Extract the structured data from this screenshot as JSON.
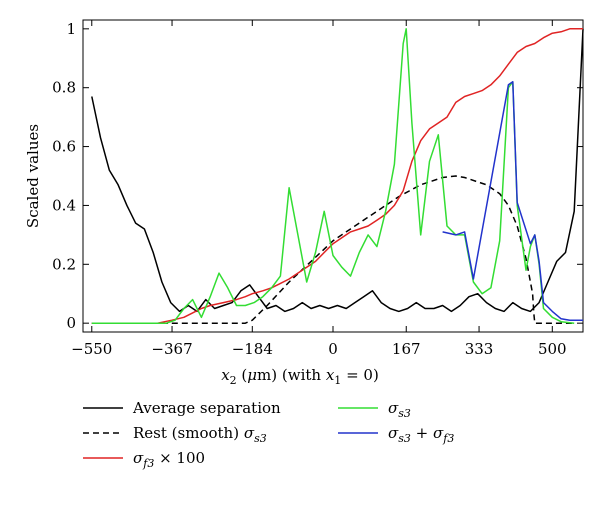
{
  "chart_data": {
    "type": "line",
    "xlabel_parts": [
      "x",
      "2",
      " (",
      "μ",
      "m) (with ",
      "x",
      "1",
      " = 0)"
    ],
    "ylabel": "Scaled values",
    "xlim": [
      -570,
      570
    ],
    "ylim": [
      -0.03,
      1.03
    ],
    "x_ticks": [
      -550,
      -367,
      -184,
      0,
      167,
      333,
      500
    ],
    "x_tick_labels": [
      "−550",
      "−367",
      "−184",
      "0",
      "167",
      "333",
      "500"
    ],
    "y_ticks": [
      0,
      0.2,
      0.4,
      0.6,
      0.8,
      1
    ],
    "y_tick_labels": [
      "0",
      "0.2",
      "0.4",
      "0.6",
      "0.8",
      "1"
    ],
    "grid": false,
    "legend_position": "bottom",
    "series": [
      {
        "key": "avg_sep",
        "legend": "Average separation",
        "color": "#000000",
        "dash": "",
        "x": [
          -550,
          -530,
          -510,
          -490,
          -470,
          -450,
          -430,
          -410,
          -390,
          -370,
          -350,
          -330,
          -310,
          -290,
          -270,
          -250,
          -230,
          -210,
          -190,
          -170,
          -150,
          -130,
          -110,
          -90,
          -70,
          -50,
          -30,
          -10,
          10,
          30,
          50,
          70,
          90,
          110,
          130,
          150,
          170,
          190,
          210,
          230,
          250,
          270,
          290,
          310,
          330,
          350,
          370,
          390,
          410,
          430,
          450,
          470,
          490,
          510,
          530,
          550,
          570
        ],
        "y": [
          0.77,
          0.63,
          0.52,
          0.47,
          0.4,
          0.34,
          0.32,
          0.24,
          0.14,
          0.07,
          0.04,
          0.06,
          0.04,
          0.08,
          0.05,
          0.06,
          0.07,
          0.11,
          0.13,
          0.09,
          0.05,
          0.06,
          0.04,
          0.05,
          0.07,
          0.05,
          0.06,
          0.05,
          0.06,
          0.05,
          0.07,
          0.09,
          0.11,
          0.07,
          0.05,
          0.04,
          0.05,
          0.07,
          0.05,
          0.05,
          0.06,
          0.04,
          0.06,
          0.09,
          0.1,
          0.07,
          0.05,
          0.04,
          0.07,
          0.05,
          0.04,
          0.07,
          0.14,
          0.21,
          0.24,
          0.38,
          1.0
        ]
      },
      {
        "key": "rest",
        "legend_parts": [
          "Rest (smooth) ",
          "σ",
          "s3",
          ""
        ],
        "color": "#000000",
        "dash": "6,4",
        "x": [
          -550,
          -350,
          -300,
          -250,
          -200,
          -184,
          -150,
          -100,
          -50,
          0,
          50,
          100,
          150,
          200,
          250,
          280,
          300,
          350,
          380,
          400,
          420,
          440,
          455,
          458,
          460,
          500,
          550
        ],
        "y": [
          0,
          0,
          0,
          0,
          0,
          0.01,
          0.06,
          0.14,
          0.21,
          0.28,
          0.33,
          0.38,
          0.43,
          0.47,
          0.495,
          0.5,
          0.495,
          0.47,
          0.44,
          0.4,
          0.33,
          0.22,
          0.1,
          0.03,
          0,
          0,
          0
        ]
      },
      {
        "key": "sf3",
        "legend_parts": [
          "",
          "σ",
          "f3",
          " × 100"
        ],
        "color": "#e02424",
        "dash": "",
        "x": [
          -550,
          -400,
          -367,
          -340,
          -320,
          -300,
          -280,
          -250,
          -220,
          -200,
          -184,
          -160,
          -140,
          -120,
          -100,
          -80,
          -60,
          -40,
          -20,
          0,
          20,
          40,
          60,
          80,
          100,
          120,
          140,
          160,
          180,
          200,
          220,
          240,
          260,
          280,
          300,
          320,
          340,
          360,
          380,
          400,
          420,
          440,
          460,
          480,
          500,
          520,
          540,
          570
        ],
        "y": [
          0,
          0,
          0.01,
          0.02,
          0.035,
          0.05,
          0.06,
          0.07,
          0.08,
          0.09,
          0.1,
          0.11,
          0.12,
          0.135,
          0.15,
          0.17,
          0.19,
          0.21,
          0.24,
          0.27,
          0.29,
          0.31,
          0.32,
          0.33,
          0.35,
          0.37,
          0.4,
          0.45,
          0.55,
          0.62,
          0.66,
          0.68,
          0.7,
          0.75,
          0.77,
          0.78,
          0.79,
          0.81,
          0.84,
          0.88,
          0.92,
          0.94,
          0.95,
          0.97,
          0.985,
          0.99,
          1.0,
          1.0
        ]
      },
      {
        "key": "ss3",
        "legend_parts": [
          "",
          "σ",
          "s3",
          ""
        ],
        "color": "#33dd33",
        "dash": "",
        "x": [
          -550,
          -380,
          -360,
          -340,
          -320,
          -300,
          -280,
          -260,
          -240,
          -220,
          -200,
          -180,
          -160,
          -140,
          -120,
          -100,
          -80,
          -60,
          -40,
          -20,
          0,
          20,
          40,
          60,
          80,
          100,
          120,
          140,
          160,
          167,
          180,
          200,
          220,
          240,
          260,
          280,
          300,
          320,
          340,
          360,
          380,
          400,
          410,
          420,
          440,
          450,
          460,
          470,
          480,
          500,
          520,
          550
        ],
        "y": [
          0,
          0,
          0.01,
          0.05,
          0.08,
          0.02,
          0.09,
          0.17,
          0.12,
          0.06,
          0.06,
          0.07,
          0.09,
          0.12,
          0.16,
          0.46,
          0.3,
          0.14,
          0.24,
          0.38,
          0.23,
          0.19,
          0.16,
          0.24,
          0.3,
          0.26,
          0.38,
          0.54,
          0.95,
          1.0,
          0.68,
          0.3,
          0.55,
          0.64,
          0.33,
          0.3,
          0.3,
          0.14,
          0.1,
          0.12,
          0.28,
          0.8,
          0.82,
          0.4,
          0.18,
          0.26,
          0.3,
          0.2,
          0.05,
          0.02,
          0.005,
          0
        ]
      },
      {
        "key": "sum",
        "legend_parts": [
          "",
          "σ",
          "s3",
          " + ",
          "σ",
          "f3",
          ""
        ],
        "color": "#2233cc",
        "dash": "",
        "x": [
          250,
          280,
          300,
          320,
          400,
          410,
          420,
          450,
          460,
          470,
          480,
          500,
          520,
          540,
          570
        ],
        "y": [
          0.31,
          0.3,
          0.31,
          0.15,
          0.81,
          0.82,
          0.41,
          0.27,
          0.3,
          0.21,
          0.07,
          0.04,
          0.015,
          0.01,
          0.01
        ]
      }
    ]
  },
  "colors": {
    "avg_sep": "#000000",
    "rest": "#000000",
    "sf3": "#e02424",
    "ss3": "#33dd33",
    "sum": "#2233cc"
  }
}
